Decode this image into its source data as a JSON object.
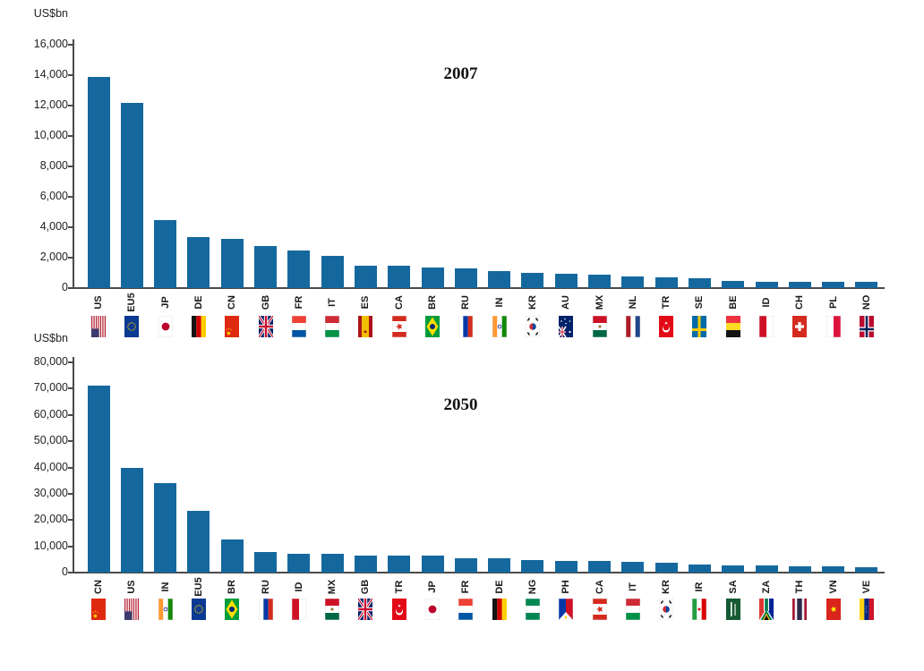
{
  "figure": {
    "bar_color": "#15689E",
    "axis_color": "#4a4a4a",
    "background": "#ffffff"
  },
  "chart_data": [
    {
      "type": "bar",
      "title": "2007",
      "ylabel": "US$bn",
      "ylim": [
        0,
        16000
      ],
      "ytick_interval": 2000,
      "ytick_labels": [
        "16,000",
        "14,000",
        "12,000",
        "10,000",
        "8,000",
        "6,000",
        "4,000",
        "2,000",
        "0"
      ],
      "grid": false,
      "legend": "none",
      "bar_color": "#15689E",
      "categories": [
        "US",
        "EU5",
        "JP",
        "DE",
        "CN",
        "GB",
        "FR",
        "IT",
        "ES",
        "CA",
        "BR",
        "RU",
        "IN",
        "KR",
        "AU",
        "MX",
        "NL",
        "TR",
        "SE",
        "BE",
        "ID",
        "CH",
        "PL",
        "NO"
      ],
      "values": [
        13900,
        12150,
        4450,
        3350,
        3250,
        2750,
        2500,
        2100,
        1500,
        1450,
        1350,
        1300,
        1100,
        1000,
        950,
        900,
        760,
        720,
        640,
        470,
        440,
        430,
        420,
        390
      ],
      "flags": [
        "US",
        "EU",
        "JP",
        "DE",
        "CN",
        "GB",
        "FR",
        "IT",
        "ES",
        "CA",
        "BR",
        "RU",
        "IN",
        "KR",
        "AU",
        "MX",
        "NL",
        "TR",
        "SE",
        "BE",
        "ID",
        "CH",
        "PL",
        "NO"
      ]
    },
    {
      "type": "bar",
      "title": "2050",
      "ylabel": "US$bn",
      "ylim": [
        0,
        80000
      ],
      "ytick_interval": 10000,
      "ytick_labels": [
        "80,000",
        "70,000",
        "60,000",
        "50,000",
        "40,000",
        "30,000",
        "20,000",
        "10,000",
        "0"
      ],
      "grid": false,
      "legend": "none",
      "bar_color": "#15689E",
      "categories": [
        "CN",
        "US",
        "IN",
        "EU5",
        "BR",
        "RU",
        "ID",
        "MX",
        "GB",
        "TR",
        "JP",
        "FR",
        "DE",
        "NG",
        "PH",
        "CA",
        "IT",
        "KR",
        "IR",
        "SA",
        "ZA",
        "TH",
        "VN",
        "VE"
      ],
      "values": [
        71000,
        40000,
        34000,
        23500,
        12500,
        8000,
        7300,
        7200,
        6500,
        6450,
        6400,
        5500,
        5300,
        4600,
        4400,
        4300,
        4200,
        3900,
        3000,
        2700,
        2600,
        2400,
        2300,
        2200
      ],
      "flags": [
        "CN",
        "US",
        "IN",
        "EU",
        "BR",
        "RU",
        "ID",
        "MX",
        "GB",
        "TR",
        "JP",
        "FR",
        "DE",
        "NG",
        "PH",
        "CA",
        "IT",
        "KR",
        "IR",
        "SA",
        "ZA",
        "TH",
        "VN",
        "VE"
      ]
    }
  ]
}
